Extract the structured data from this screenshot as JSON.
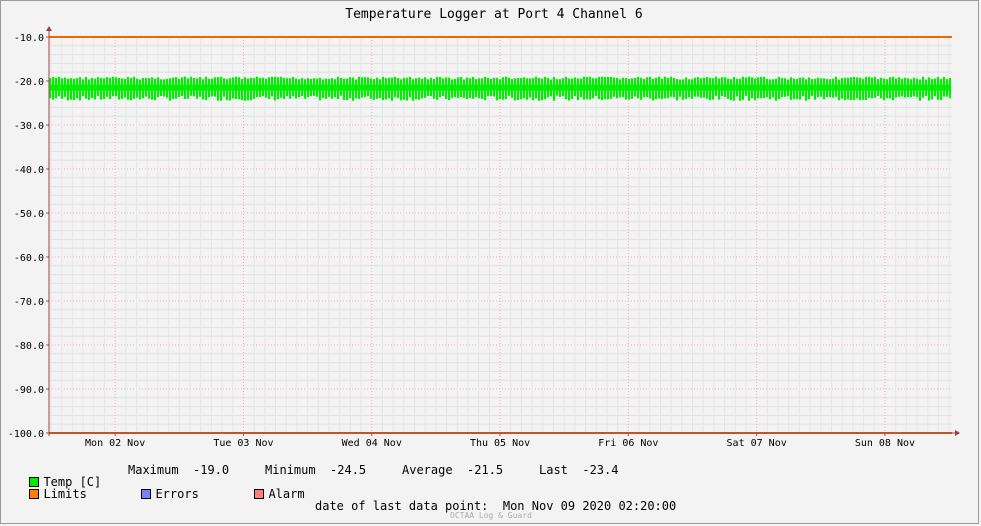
{
  "chart_data": {
    "type": "line",
    "title": "Temperature Logger at Port 4 Channel 6",
    "ylim": [
      -100,
      -10
    ],
    "y_ticks": [
      -10.0,
      -20.0,
      -30.0,
      -40.0,
      -50.0,
      -60.0,
      -70.0,
      -80.0,
      -90.0,
      -100.0
    ],
    "y_tick_labels": [
      "-10.0",
      "-20.0",
      "-30.0",
      "-40.0",
      "-50.0",
      "-60.0",
      "-70.0",
      "-80.0",
      "-90.0",
      "-100.0"
    ],
    "x_tick_labels": [
      "Mon 02 Nov",
      "Tue 03 Nov",
      "Wed 04 Nov",
      "Thu 05 Nov",
      "Fri 06 Nov",
      "Sat 07 Nov",
      "Sun 08 Nov"
    ],
    "grid": true,
    "series": [
      {
        "name": "Temp [C]",
        "color": "#00ee00",
        "band_min": -24.5,
        "band_max": -19.0,
        "average": -21.5
      },
      {
        "name": "Limits",
        "color": "#ee6600",
        "values": [
          -10.0,
          -100.0
        ]
      }
    ]
  },
  "legend": {
    "temp": {
      "label": "Temp [C]",
      "color": "#00ee00"
    },
    "limits": {
      "label": "Limits",
      "color": "#ff7f00"
    },
    "errors": {
      "label": "Errors",
      "color": "#7f7fff"
    },
    "alarm": {
      "label": "Alarm",
      "color": "#ff7f7f"
    },
    "stats": {
      "max_label": "Maximum",
      "max_value": "-19.0",
      "min_label": "Minimum",
      "min_value": "-24.5",
      "avg_label": "Average",
      "avg_value": "-21.5",
      "last_label": "Last",
      "last_value": "-23.4"
    }
  },
  "footer": {
    "last_point_label": "date of last data point:",
    "last_point_value": "Mon Nov 09 2020 02:20:00",
    "watermark": "OCTAA Log & Guard"
  }
}
